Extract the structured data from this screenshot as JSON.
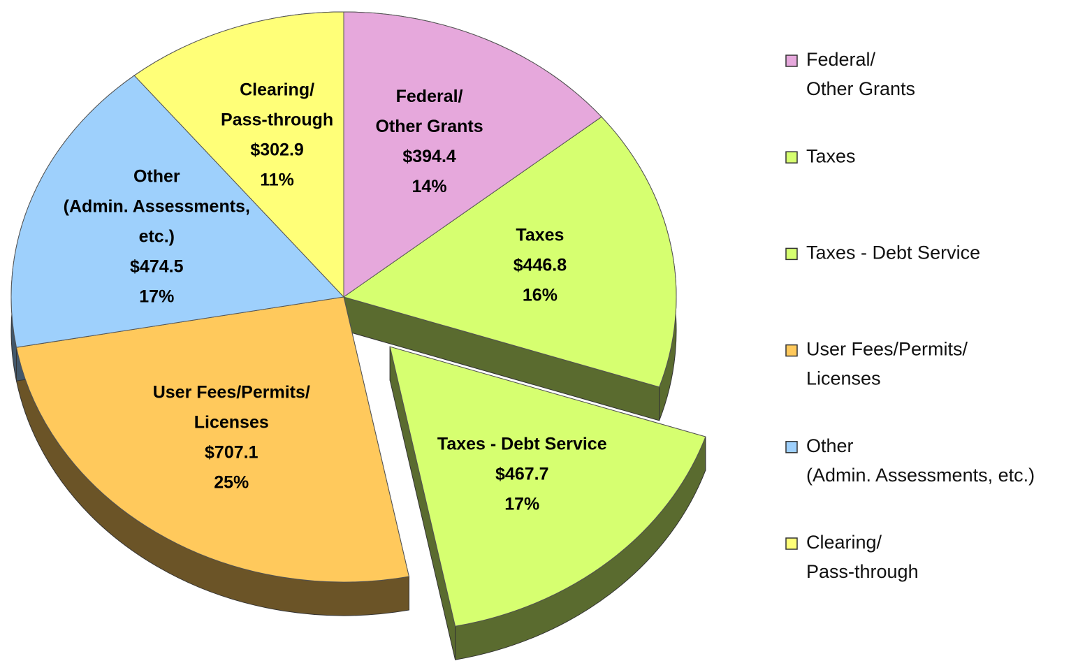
{
  "chart_data": {
    "type": "pie",
    "categories": [
      [
        "Federal/",
        "Other Grants"
      ],
      [
        "Taxes"
      ],
      [
        "Taxes - Debt Service"
      ],
      [
        "User Fees/Permits/",
        "Licenses"
      ],
      [
        "Other",
        "(Admin. Assessments,",
        "etc.)"
      ],
      [
        "Clearing/",
        "Pass-through"
      ]
    ],
    "values": [
      394.4,
      446.8,
      467.7,
      707.1,
      474.5,
      302.9
    ],
    "value_labels": [
      "$394.4",
      "$446.8",
      "$467.7",
      "$707.1",
      "$474.5",
      "$302.9"
    ],
    "percents": [
      14,
      16,
      17,
      25,
      17,
      11
    ],
    "percent_labels": [
      "14%",
      "16%",
      "17%",
      "25%",
      "17%",
      "11%"
    ],
    "colors": [
      "#e6a8dc",
      "#d6ff70",
      "#d6ff70",
      "#ffc95c",
      "#9ed0fc",
      "#ffff78"
    ],
    "explode": [
      false,
      false,
      true,
      false,
      false,
      false
    ],
    "legend": [
      [
        "Federal/",
        "Other Grants"
      ],
      [
        "Taxes"
      ],
      [
        "Taxes - Debt Service"
      ],
      [
        "User Fees/Permits/",
        " Licenses"
      ],
      [
        "Other",
        "(Admin. Assessments, etc.)"
      ],
      [
        "Clearing/",
        "Pass-through"
      ]
    ],
    "legend_position": "right"
  }
}
